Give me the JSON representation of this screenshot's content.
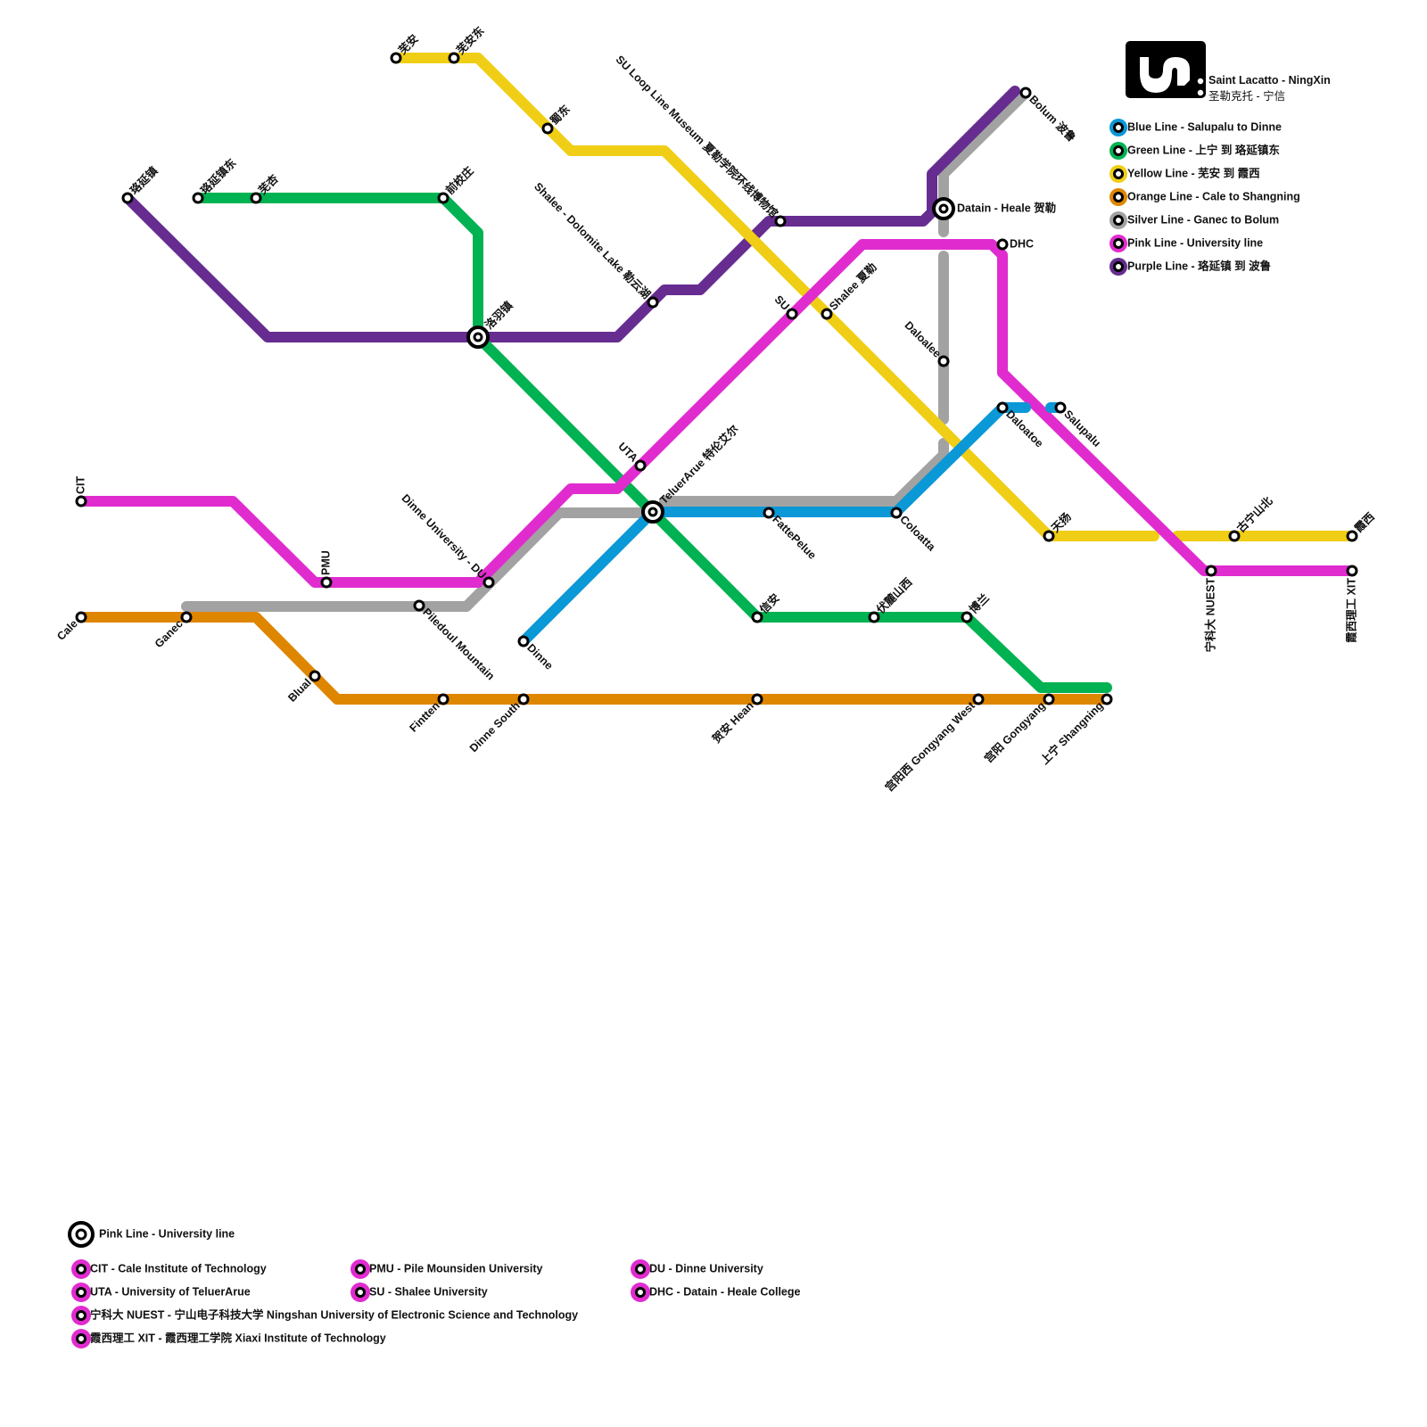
{
  "brand": {
    "logo_icon": "metro-logo-icon",
    "name_en": "Saint Lacatto - NingXin",
    "name_zh": "圣勒克托 - 宁信"
  },
  "lines": [
    {
      "id": "blue",
      "label": "Blue Line - Salupalu to Dinne",
      "color": "#0a98d6"
    },
    {
      "id": "green",
      "label": "Green Line - 上宁 到 珞延镇东",
      "color": "#00b251"
    },
    {
      "id": "yellow",
      "label": "Yellow Line - 芜安 到 霞西",
      "color": "#f0ce15"
    },
    {
      "id": "orange",
      "label": "Orange Line - Cale to Shangning",
      "color": "#df8600"
    },
    {
      "id": "silver",
      "label": "Silver Line - Ganec to Bolum",
      "color": "#a2a2a2"
    },
    {
      "id": "pink",
      "label": "Pink Line - University line",
      "color": "#e02ccf"
    },
    {
      "id": "purple",
      "label": "Purple Line - 珞延镇 到 波鲁",
      "color": "#662c90"
    }
  ],
  "stations": [
    {
      "name": "芜安"
    },
    {
      "name": "芜安东"
    },
    {
      "name": "蜀东"
    },
    {
      "name": "前校庄"
    },
    {
      "name": "芜杏"
    },
    {
      "name": "珞延镇东"
    },
    {
      "name": "珞延镇"
    },
    {
      "name": "洛羽镇",
      "interchange": true
    },
    {
      "name": "Shalee - Dolomite Lake 勒云湖"
    },
    {
      "name": "SU Loop Line Museum 夏勒学院环线博物馆"
    },
    {
      "name": "SU"
    },
    {
      "name": "Shalee 夏勒"
    },
    {
      "name": "Datain - Heale 贺勒",
      "interchange": true
    },
    {
      "name": "DHC"
    },
    {
      "name": "Bolum 波鲁"
    },
    {
      "name": "Daloalee"
    },
    {
      "name": "Daloatoe"
    },
    {
      "name": "Salupalu"
    },
    {
      "name": "天扬"
    },
    {
      "name": "古宁山北"
    },
    {
      "name": "霞西"
    },
    {
      "name": "宁科大 NUEST"
    },
    {
      "name": "霞西理工 XIT"
    },
    {
      "name": "UTA"
    },
    {
      "name": "TeluerArue 特伦艾尔",
      "interchange": true
    },
    {
      "name": "FattePelue"
    },
    {
      "name": "Coloatta"
    },
    {
      "name": "信安"
    },
    {
      "name": "伏麓山西"
    },
    {
      "name": "博兰"
    },
    {
      "name": "贺安 Hean"
    },
    {
      "name": "宫阳西 Gongyang West"
    },
    {
      "name": "宫阳 Gongyang"
    },
    {
      "name": "上宁 Shangning"
    },
    {
      "name": "Dinne South"
    },
    {
      "name": "Fintten"
    },
    {
      "name": "Blual"
    },
    {
      "name": "Ganec"
    },
    {
      "name": "Cale"
    },
    {
      "name": "CIT"
    },
    {
      "name": "PMU"
    },
    {
      "name": "Dinne University - DU"
    },
    {
      "name": "Piledoul Mountain"
    },
    {
      "name": "Dinne"
    }
  ],
  "university_legend": {
    "interchange_label": "Pink Line - University line",
    "items": [
      "CIT - Cale Institute of Technology",
      "UTA - University of TeluerArue",
      "宁科大 NUEST - 宁山电子科技大学 Ningshan University of Electronic Science and Technology",
      "霞西理工 XIT - 霞西理工学院 Xiaxi Institute of Technology",
      "PMU - Pile Mounsiden University",
      "SU - Shalee University",
      "DU - Dinne University",
      "DHC - Datain - Heale College"
    ]
  }
}
